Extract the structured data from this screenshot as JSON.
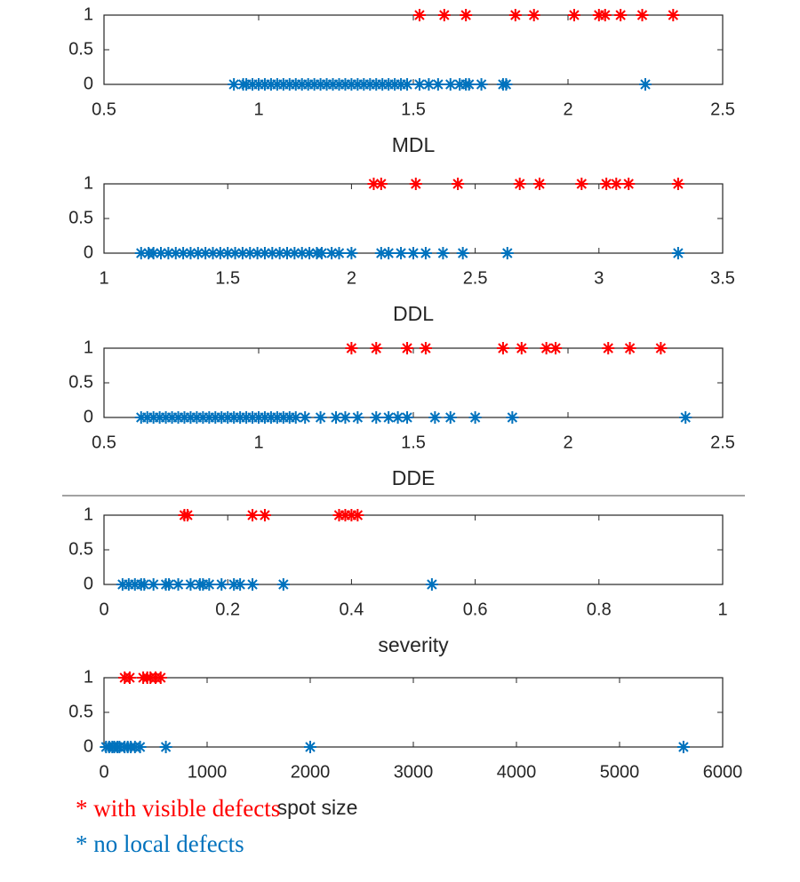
{
  "legend": [
    {
      "text": "* with visible defects",
      "color": "#ff0000"
    },
    {
      "text": "* no local defects",
      "color": "#0072bd"
    }
  ],
  "chart_data": [
    {
      "type": "scatter",
      "xlabel": "MDL",
      "xlim": [
        0.5,
        2.5
      ],
      "xticks": [
        0.5,
        1,
        1.5,
        2,
        2.5
      ],
      "ylim": [
        0,
        1
      ],
      "yticks": [
        0,
        0.5,
        1
      ],
      "series": [
        {
          "color": "#ff0000",
          "x": [
            1.52,
            1.6,
            1.67,
            1.83,
            1.89,
            2.02,
            2.1,
            2.12,
            2.17,
            2.24,
            2.34
          ],
          "values": [
            1,
            1,
            1,
            1,
            1,
            1,
            1,
            1,
            1,
            1,
            1
          ]
        },
        {
          "color": "#0072bd",
          "x": [
            0.92,
            0.95,
            0.96,
            0.98,
            1.0,
            1.02,
            1.04,
            1.06,
            1.08,
            1.1,
            1.12,
            1.14,
            1.16,
            1.18,
            1.2,
            1.22,
            1.24,
            1.26,
            1.28,
            1.3,
            1.32,
            1.34,
            1.36,
            1.38,
            1.4,
            1.42,
            1.44,
            1.46,
            1.48,
            1.52,
            1.55,
            1.58,
            1.62,
            1.65,
            1.67,
            1.68,
            1.72,
            1.79,
            1.8,
            2.25
          ],
          "values": [
            0,
            0,
            0,
            0,
            0,
            0,
            0,
            0,
            0,
            0,
            0,
            0,
            0,
            0,
            0,
            0,
            0,
            0,
            0,
            0,
            0,
            0,
            0,
            0,
            0,
            0,
            0,
            0,
            0,
            0,
            0,
            0,
            0,
            0,
            0,
            0,
            0,
            0,
            0,
            0
          ]
        }
      ]
    },
    {
      "type": "scatter",
      "xlabel": "DDL",
      "xlim": [
        1,
        3.5
      ],
      "xticks": [
        1,
        1.5,
        2,
        2.5,
        3,
        3.5
      ],
      "ylim": [
        0,
        1
      ],
      "yticks": [
        0,
        0.5,
        1
      ],
      "series": [
        {
          "color": "#ff0000",
          "x": [
            2.09,
            2.12,
            2.26,
            2.43,
            2.68,
            2.76,
            2.93,
            3.03,
            3.07,
            3.12,
            3.32
          ],
          "values": [
            1,
            1,
            1,
            1,
            1,
            1,
            1,
            1,
            1,
            1,
            1
          ]
        },
        {
          "color": "#0072bd",
          "x": [
            1.15,
            1.18,
            1.2,
            1.23,
            1.26,
            1.29,
            1.32,
            1.35,
            1.38,
            1.41,
            1.44,
            1.47,
            1.5,
            1.53,
            1.56,
            1.59,
            1.62,
            1.65,
            1.68,
            1.71,
            1.74,
            1.77,
            1.8,
            1.83,
            1.86,
            1.88,
            1.92,
            1.95,
            2.0,
            2.12,
            2.15,
            2.2,
            2.25,
            2.3,
            2.37,
            2.45,
            2.63,
            3.32
          ],
          "values": [
            0,
            0,
            0,
            0,
            0,
            0,
            0,
            0,
            0,
            0,
            0,
            0,
            0,
            0,
            0,
            0,
            0,
            0,
            0,
            0,
            0,
            0,
            0,
            0,
            0,
            0,
            0,
            0,
            0,
            0,
            0,
            0,
            0,
            0,
            0,
            0,
            0,
            0
          ]
        }
      ]
    },
    {
      "type": "scatter",
      "xlabel": "DDE",
      "xlim": [
        0.5,
        2.5
      ],
      "xticks": [
        0.5,
        1,
        1.5,
        2,
        2.5
      ],
      "ylim": [
        0,
        1
      ],
      "yticks": [
        0,
        0.5,
        1
      ],
      "series": [
        {
          "color": "#ff0000",
          "x": [
            1.3,
            1.38,
            1.48,
            1.54,
            1.79,
            1.85,
            1.93,
            1.96,
            2.13,
            2.2,
            2.3
          ],
          "values": [
            1,
            1,
            1,
            1,
            1,
            1,
            1,
            1,
            1,
            1,
            1
          ]
        },
        {
          "color": "#0072bd",
          "x": [
            0.62,
            0.64,
            0.66,
            0.68,
            0.7,
            0.72,
            0.74,
            0.76,
            0.78,
            0.8,
            0.82,
            0.84,
            0.86,
            0.88,
            0.9,
            0.92,
            0.94,
            0.96,
            0.98,
            1.0,
            1.02,
            1.04,
            1.06,
            1.08,
            1.1,
            1.12,
            1.15,
            1.2,
            1.25,
            1.28,
            1.32,
            1.38,
            1.42,
            1.45,
            1.48,
            1.57,
            1.62,
            1.7,
            1.82,
            2.38
          ],
          "values": [
            0,
            0,
            0,
            0,
            0,
            0,
            0,
            0,
            0,
            0,
            0,
            0,
            0,
            0,
            0,
            0,
            0,
            0,
            0,
            0,
            0,
            0,
            0,
            0,
            0,
            0,
            0,
            0,
            0,
            0,
            0,
            0,
            0,
            0,
            0,
            0,
            0,
            0,
            0,
            0
          ]
        }
      ]
    },
    {
      "type": "scatter",
      "xlabel": "severity",
      "xlim": [
        0,
        1
      ],
      "xticks": [
        0,
        0.2,
        0.4,
        0.6,
        0.8,
        1
      ],
      "ylim": [
        0,
        1
      ],
      "yticks": [
        0,
        0.5,
        1
      ],
      "series": [
        {
          "color": "#ff0000",
          "x": [
            0.13,
            0.135,
            0.24,
            0.26,
            0.38,
            0.39,
            0.4,
            0.41
          ],
          "values": [
            1,
            1,
            1,
            1,
            1,
            1,
            1,
            1
          ]
        },
        {
          "color": "#0072bd",
          "x": [
            0.03,
            0.04,
            0.05,
            0.06,
            0.065,
            0.08,
            0.1,
            0.105,
            0.12,
            0.14,
            0.155,
            0.16,
            0.17,
            0.19,
            0.21,
            0.22,
            0.24,
            0.29,
            0.53
          ],
          "values": [
            0,
            0,
            0,
            0,
            0,
            0,
            0,
            0,
            0,
            0,
            0,
            0,
            0,
            0,
            0,
            0,
            0,
            0,
            0
          ]
        }
      ]
    },
    {
      "type": "scatter",
      "xlabel": "spot size",
      "xlim": [
        0,
        6000
      ],
      "xticks": [
        0,
        1000,
        2000,
        3000,
        4000,
        5000,
        6000
      ],
      "ylim": [
        0,
        1
      ],
      "yticks": [
        0,
        0.5,
        1
      ],
      "series": [
        {
          "color": "#ff0000",
          "x": [
            200,
            250,
            380,
            420,
            450,
            500,
            550
          ],
          "values": [
            1,
            1,
            1,
            1,
            1,
            1,
            1
          ]
        },
        {
          "color": "#0072bd",
          "x": [
            20,
            50,
            80,
            100,
            130,
            150,
            200,
            230,
            260,
            300,
            350,
            600,
            2000,
            5620
          ],
          "values": [
            0,
            0,
            0,
            0,
            0,
            0,
            0,
            0,
            0,
            0,
            0,
            0,
            0,
            0
          ]
        }
      ]
    }
  ]
}
